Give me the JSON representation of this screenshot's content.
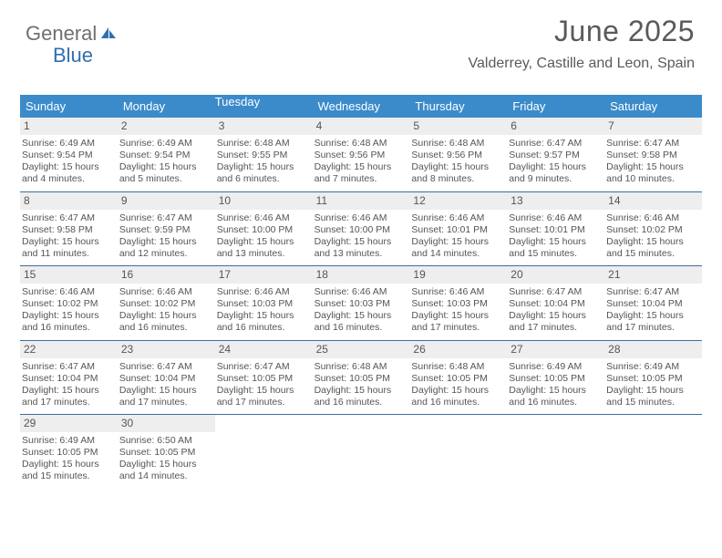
{
  "logo": {
    "word1": "General",
    "word2": "Blue"
  },
  "title": "June 2025",
  "location": "Valderrey, Castille and Leon, Spain",
  "colors": {
    "header_bg": "#3b8bca",
    "header_fg": "#ffffff",
    "daynum_bg": "#eeeeee",
    "week_border": "#3b6fa0",
    "text": "#555555",
    "logo_blue": "#2f6fb0",
    "logo_gray": "#6f6f6f"
  },
  "weekdays": [
    "Sunday",
    "Monday",
    "Tuesday",
    "Wednesday",
    "Thursday",
    "Friday",
    "Saturday"
  ],
  "weeks": [
    [
      {
        "n": "1",
        "sunrise": "Sunrise: 6:49 AM",
        "sunset": "Sunset: 9:54 PM",
        "daylight": "Daylight: 15 hours and 4 minutes."
      },
      {
        "n": "2",
        "sunrise": "Sunrise: 6:49 AM",
        "sunset": "Sunset: 9:54 PM",
        "daylight": "Daylight: 15 hours and 5 minutes."
      },
      {
        "n": "3",
        "sunrise": "Sunrise: 6:48 AM",
        "sunset": "Sunset: 9:55 PM",
        "daylight": "Daylight: 15 hours and 6 minutes."
      },
      {
        "n": "4",
        "sunrise": "Sunrise: 6:48 AM",
        "sunset": "Sunset: 9:56 PM",
        "daylight": "Daylight: 15 hours and 7 minutes."
      },
      {
        "n": "5",
        "sunrise": "Sunrise: 6:48 AM",
        "sunset": "Sunset: 9:56 PM",
        "daylight": "Daylight: 15 hours and 8 minutes."
      },
      {
        "n": "6",
        "sunrise": "Sunrise: 6:47 AM",
        "sunset": "Sunset: 9:57 PM",
        "daylight": "Daylight: 15 hours and 9 minutes."
      },
      {
        "n": "7",
        "sunrise": "Sunrise: 6:47 AM",
        "sunset": "Sunset: 9:58 PM",
        "daylight": "Daylight: 15 hours and 10 minutes."
      }
    ],
    [
      {
        "n": "8",
        "sunrise": "Sunrise: 6:47 AM",
        "sunset": "Sunset: 9:58 PM",
        "daylight": "Daylight: 15 hours and 11 minutes."
      },
      {
        "n": "9",
        "sunrise": "Sunrise: 6:47 AM",
        "sunset": "Sunset: 9:59 PM",
        "daylight": "Daylight: 15 hours and 12 minutes."
      },
      {
        "n": "10",
        "sunrise": "Sunrise: 6:46 AM",
        "sunset": "Sunset: 10:00 PM",
        "daylight": "Daylight: 15 hours and 13 minutes."
      },
      {
        "n": "11",
        "sunrise": "Sunrise: 6:46 AM",
        "sunset": "Sunset: 10:00 PM",
        "daylight": "Daylight: 15 hours and 13 minutes."
      },
      {
        "n": "12",
        "sunrise": "Sunrise: 6:46 AM",
        "sunset": "Sunset: 10:01 PM",
        "daylight": "Daylight: 15 hours and 14 minutes."
      },
      {
        "n": "13",
        "sunrise": "Sunrise: 6:46 AM",
        "sunset": "Sunset: 10:01 PM",
        "daylight": "Daylight: 15 hours and 15 minutes."
      },
      {
        "n": "14",
        "sunrise": "Sunrise: 6:46 AM",
        "sunset": "Sunset: 10:02 PM",
        "daylight": "Daylight: 15 hours and 15 minutes."
      }
    ],
    [
      {
        "n": "15",
        "sunrise": "Sunrise: 6:46 AM",
        "sunset": "Sunset: 10:02 PM",
        "daylight": "Daylight: 15 hours and 16 minutes."
      },
      {
        "n": "16",
        "sunrise": "Sunrise: 6:46 AM",
        "sunset": "Sunset: 10:02 PM",
        "daylight": "Daylight: 15 hours and 16 minutes."
      },
      {
        "n": "17",
        "sunrise": "Sunrise: 6:46 AM",
        "sunset": "Sunset: 10:03 PM",
        "daylight": "Daylight: 15 hours and 16 minutes."
      },
      {
        "n": "18",
        "sunrise": "Sunrise: 6:46 AM",
        "sunset": "Sunset: 10:03 PM",
        "daylight": "Daylight: 15 hours and 16 minutes."
      },
      {
        "n": "19",
        "sunrise": "Sunrise: 6:46 AM",
        "sunset": "Sunset: 10:03 PM",
        "daylight": "Daylight: 15 hours and 17 minutes."
      },
      {
        "n": "20",
        "sunrise": "Sunrise: 6:47 AM",
        "sunset": "Sunset: 10:04 PM",
        "daylight": "Daylight: 15 hours and 17 minutes."
      },
      {
        "n": "21",
        "sunrise": "Sunrise: 6:47 AM",
        "sunset": "Sunset: 10:04 PM",
        "daylight": "Daylight: 15 hours and 17 minutes."
      }
    ],
    [
      {
        "n": "22",
        "sunrise": "Sunrise: 6:47 AM",
        "sunset": "Sunset: 10:04 PM",
        "daylight": "Daylight: 15 hours and 17 minutes."
      },
      {
        "n": "23",
        "sunrise": "Sunrise: 6:47 AM",
        "sunset": "Sunset: 10:04 PM",
        "daylight": "Daylight: 15 hours and 17 minutes."
      },
      {
        "n": "24",
        "sunrise": "Sunrise: 6:47 AM",
        "sunset": "Sunset: 10:05 PM",
        "daylight": "Daylight: 15 hours and 17 minutes."
      },
      {
        "n": "25",
        "sunrise": "Sunrise: 6:48 AM",
        "sunset": "Sunset: 10:05 PM",
        "daylight": "Daylight: 15 hours and 16 minutes."
      },
      {
        "n": "26",
        "sunrise": "Sunrise: 6:48 AM",
        "sunset": "Sunset: 10:05 PM",
        "daylight": "Daylight: 15 hours and 16 minutes."
      },
      {
        "n": "27",
        "sunrise": "Sunrise: 6:49 AM",
        "sunset": "Sunset: 10:05 PM",
        "daylight": "Daylight: 15 hours and 16 minutes."
      },
      {
        "n": "28",
        "sunrise": "Sunrise: 6:49 AM",
        "sunset": "Sunset: 10:05 PM",
        "daylight": "Daylight: 15 hours and 15 minutes."
      }
    ],
    [
      {
        "n": "29",
        "sunrise": "Sunrise: 6:49 AM",
        "sunset": "Sunset: 10:05 PM",
        "daylight": "Daylight: 15 hours and 15 minutes."
      },
      {
        "n": "30",
        "sunrise": "Sunrise: 6:50 AM",
        "sunset": "Sunset: 10:05 PM",
        "daylight": "Daylight: 15 hours and 14 minutes."
      },
      {
        "empty": true
      },
      {
        "empty": true
      },
      {
        "empty": true
      },
      {
        "empty": true
      },
      {
        "empty": true
      }
    ]
  ]
}
